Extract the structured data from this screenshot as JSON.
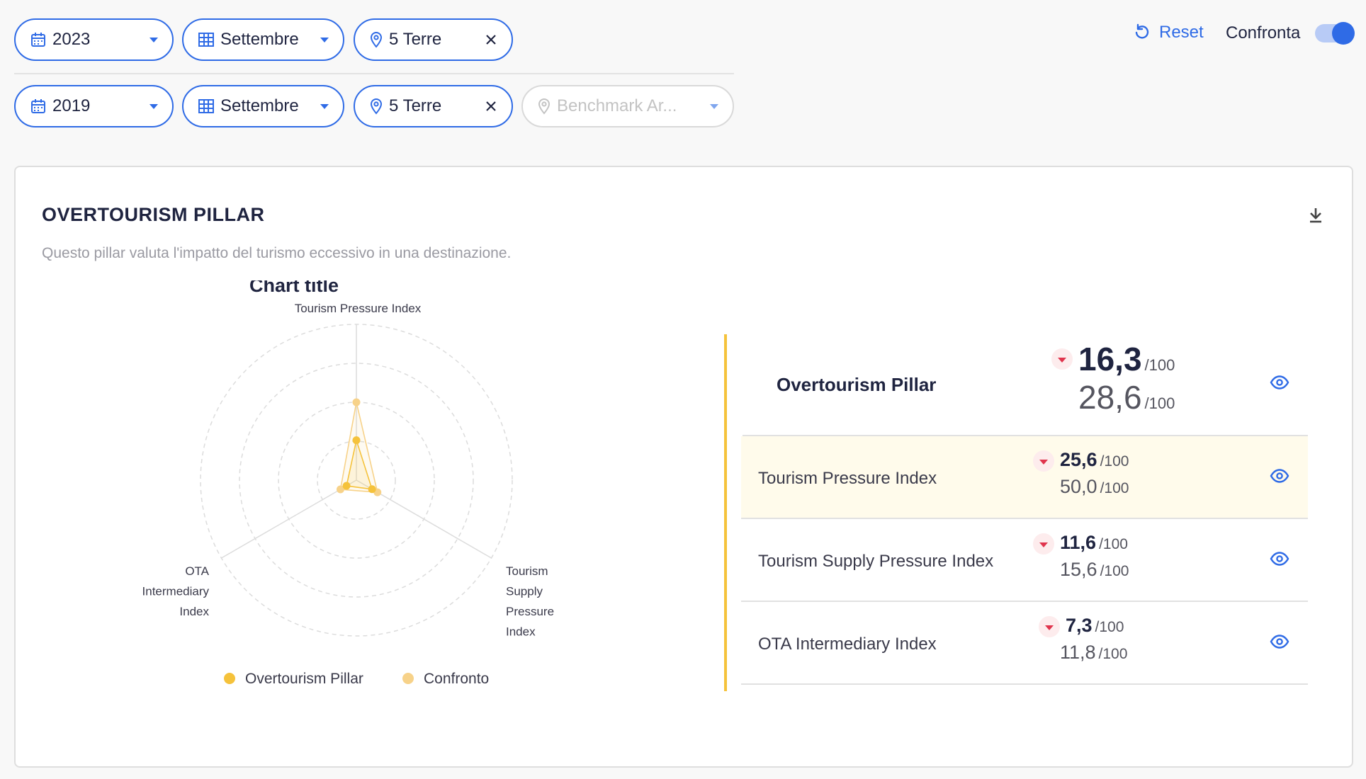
{
  "filters": {
    "current": {
      "year": "2023",
      "month": "Settembre",
      "area": "5 Terre"
    },
    "comparison": {
      "year": "2019",
      "month": "Settembre",
      "area": "5 Terre",
      "benchmark_placeholder": "Benchmark Ar..."
    }
  },
  "toolbar": {
    "reset_label": "Reset",
    "compare_label": "Confronta",
    "compare_on": true
  },
  "card": {
    "title": "OVERTOURISM PILLAR",
    "description": "Questo pillar valuta l'impatto del turismo eccessivo in una destinazione."
  },
  "chart_data": {
    "type": "radar",
    "title": "Chart title",
    "axes": [
      "Tourism Pressure Index",
      "Tourism Supply Pressure Index",
      "OTA Intermediary Index"
    ],
    "rmax": 100,
    "rings": 4,
    "series": [
      {
        "name": "Overtourism Pillar",
        "color": "#f5c23b",
        "values": [
          25.6,
          11.6,
          7.3
        ]
      },
      {
        "name": "Confronto",
        "color": "#f7d289",
        "values": [
          50.0,
          15.6,
          11.8
        ]
      }
    ],
    "legend": "bottom"
  },
  "metrics": {
    "denominator": "/100",
    "rows": [
      {
        "label": "Overtourism Pillar",
        "current": "16,3",
        "previous": "28,6",
        "trend": "down"
      },
      {
        "label": "Tourism Pressure Index",
        "current": "25,6",
        "previous": "50,0",
        "trend": "down"
      },
      {
        "label": "Tourism Supply Pressure Index",
        "current": "11,6",
        "previous": "15,6",
        "trend": "down"
      },
      {
        "label": "OTA Intermediary Index",
        "current": "7,3",
        "previous": "11,8",
        "trend": "down"
      }
    ]
  }
}
